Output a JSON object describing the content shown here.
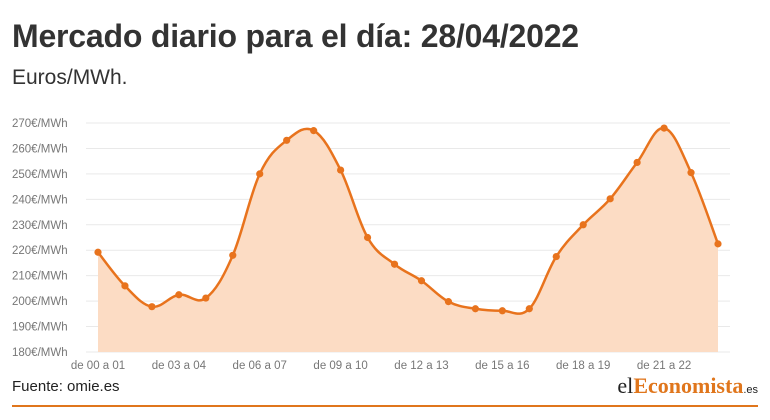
{
  "header": {
    "title": "Mercado diario para el día: 28/04/2022",
    "subtitle": "Euros/MWh."
  },
  "footer": {
    "source": "Fuente: omie.es",
    "logo_prefix": "el",
    "logo_accent": "Economista",
    "logo_suffix": ".es"
  },
  "colors": {
    "line": "#e8731d",
    "area": "#fcdcc4",
    "grid": "#e9e9e9",
    "accent": "#e0761c"
  },
  "chart_data": {
    "type": "area",
    "title": "Mercado diario para el día: 28/04/2022",
    "ylabel": "Euros/MWh.",
    "ylim": [
      180,
      270
    ],
    "yticks": [
      {
        "value": 180,
        "label": "180€/MWh"
      },
      {
        "value": 190,
        "label": "190€/MWh"
      },
      {
        "value": 200,
        "label": "200€/MWh"
      },
      {
        "value": 210,
        "label": "210€/MWh"
      },
      {
        "value": 220,
        "label": "220€/MWh"
      },
      {
        "value": 230,
        "label": "230€/MWh"
      },
      {
        "value": 240,
        "label": "240€/MWh"
      },
      {
        "value": 250,
        "label": "250€/MWh"
      },
      {
        "value": 260,
        "label": "260€/MWh"
      },
      {
        "value": 270,
        "label": "270€/MWh"
      }
    ],
    "xticks": [
      {
        "index": 0,
        "label": "de 00 a 01"
      },
      {
        "index": 3,
        "label": "de 03 a 04"
      },
      {
        "index": 6,
        "label": "de 06 a 07"
      },
      {
        "index": 9,
        "label": "de 09 a 10"
      },
      {
        "index": 12,
        "label": "de 12 a 13"
      },
      {
        "index": 15,
        "label": "de 15 a 16"
      },
      {
        "index": 18,
        "label": "de 18 a 19"
      },
      {
        "index": 21,
        "label": "de 21 a 22"
      }
    ],
    "grid": true,
    "legend": "none",
    "values": [
      219.2,
      206.0,
      197.8,
      202.5,
      201.2,
      218.0,
      250.0,
      263.2,
      267.0,
      251.5,
      225.0,
      214.5,
      208.0,
      199.8,
      197.0,
      196.2,
      197.0,
      217.5,
      230.0,
      240.2,
      254.5,
      268.0,
      250.5,
      222.5
    ]
  }
}
